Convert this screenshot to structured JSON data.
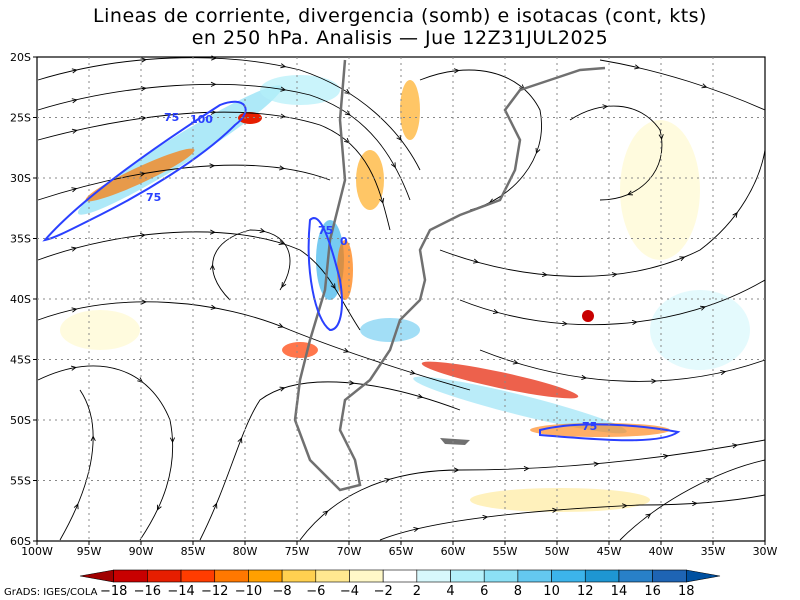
{
  "title": {
    "line1": "Lineas de corriente, divergencia (somb) e isotacas (cont, kts)",
    "line2": "en 250 hPa. Analisis — Jue 12Z31JUL2025"
  },
  "axes": {
    "lat_labels": [
      "20S",
      "25S",
      "30S",
      "35S",
      "40S",
      "45S",
      "50S",
      "55S",
      "60S"
    ],
    "lon_labels": [
      "100W",
      "95W",
      "90W",
      "85W",
      "80W",
      "75W",
      "70W",
      "65W",
      "60W",
      "55W",
      "50W",
      "45W",
      "40W",
      "35W",
      "30W"
    ]
  },
  "isotach_labels": [
    "75",
    "100",
    "75",
    "75",
    "0",
    "75"
  ],
  "colorbar": {
    "labels": [
      "−18",
      "−16",
      "−14",
      "−12",
      "−10",
      "−8",
      "−6",
      "−4",
      "−2",
      "2",
      "4",
      "6",
      "8",
      "10",
      "12",
      "14",
      "16",
      "18"
    ],
    "colors": [
      "#a00000",
      "#c80000",
      "#e61e00",
      "#ff3c00",
      "#ff7800",
      "#ffa000",
      "#ffd050",
      "#ffe890",
      "#fff8c8",
      "#ffffff",
      "#d8f8fc",
      "#b4f0fa",
      "#8ce0f5",
      "#64c8f0",
      "#3cb4eb",
      "#1e96d2",
      "#2880c8",
      "#1e64b4",
      "#0050a0"
    ]
  },
  "credit": "GrADS: IGES/COLA",
  "colors": {
    "coastline": "#707070",
    "isotach": "#2a40ff",
    "streamline": "#000000",
    "positive": "#4ab0f0",
    "negative": "#ff6a00"
  }
}
